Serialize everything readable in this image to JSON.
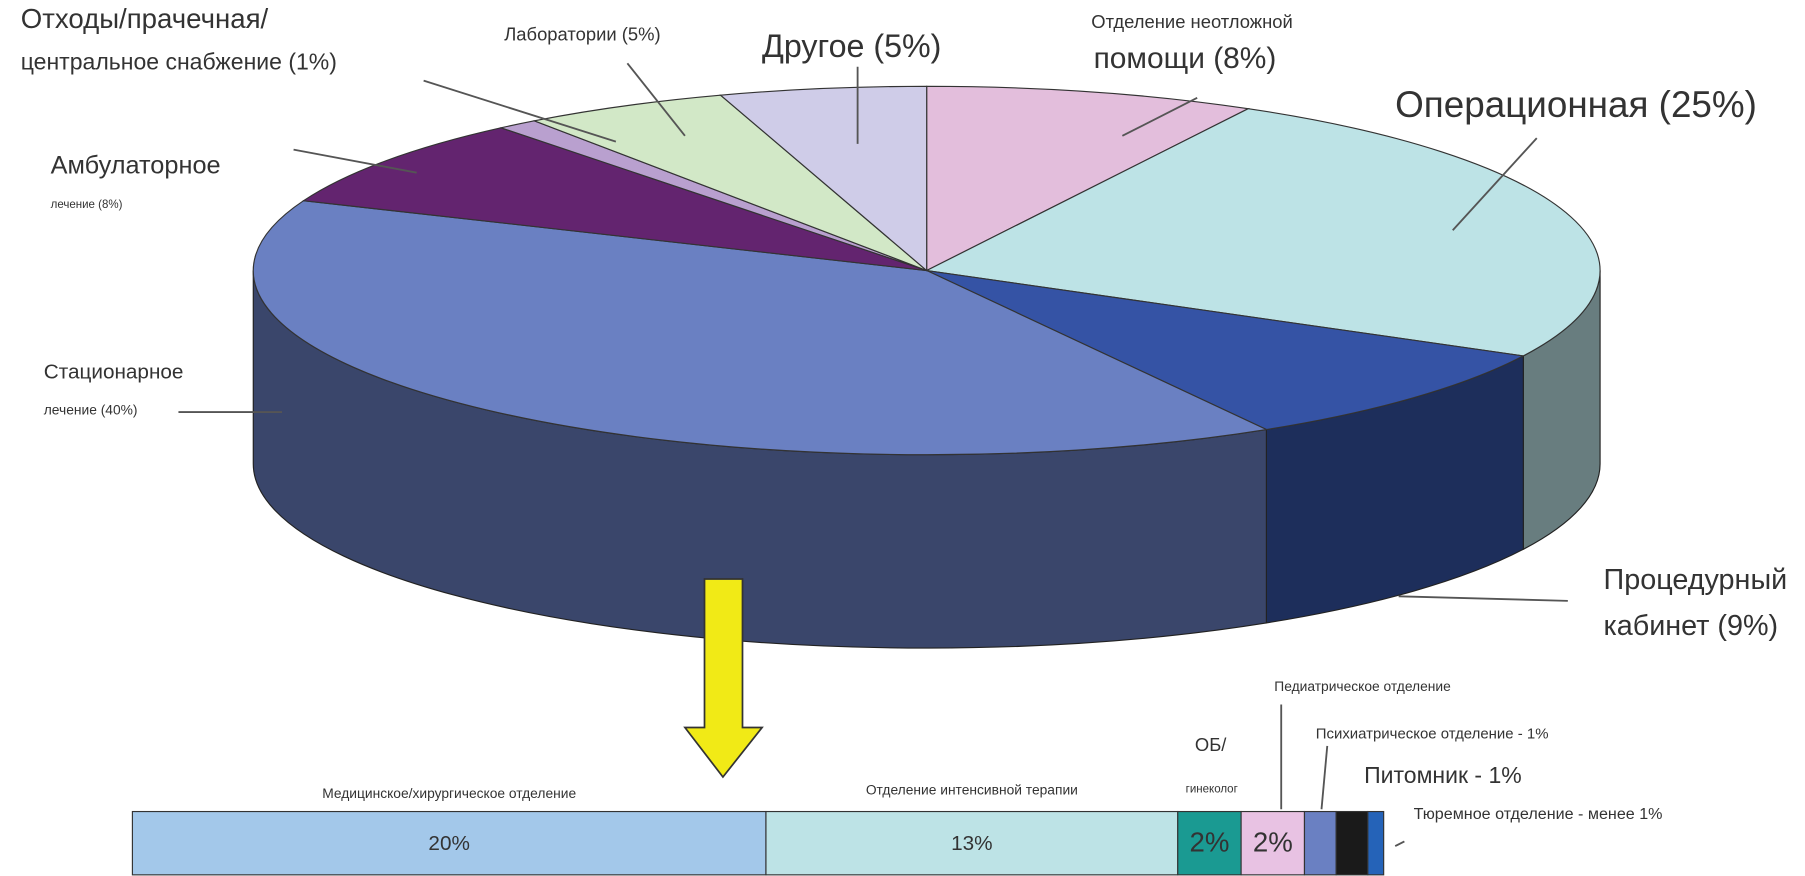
{
  "chart_data": [
    {
      "type": "pie",
      "categories": [
        [
          "Отделение неотложной",
          "помощи (8%)"
        ],
        [
          "Операционная (25%)"
        ],
        [
          "Процедурный",
          "кабинет (9%)"
        ],
        [
          "Стационарное",
          "лечение (40%)"
        ],
        [
          "Амбулаторное",
          "лечение (8%)"
        ],
        [
          "Отходы/прачечная/",
          "центральное снабжение (1%)"
        ],
        [
          "Лаборатории (5%)"
        ],
        [
          "Другое (5%)"
        ]
      ],
      "values": [
        8,
        25,
        9,
        40,
        8,
        1,
        5,
        5
      ],
      "colors": [
        "#e3bedc",
        "#bde3e6",
        "#3553a5",
        "#6a80c2",
        "#63246f",
        "#b9a0cf",
        "#d2e8c7",
        "#cfcce8"
      ]
    },
    {
      "type": "stacked-bar",
      "categories": [
        [
          "Медицинское/хирургическое отделение"
        ],
        [
          "Отделение интенсивной терапии"
        ],
        [
          "ОБ/",
          "гинеколог"
        ],
        [
          "Педиатрическое отделение"
        ],
        [
          "Психиатрическое отделение - 1%"
        ],
        [
          "Питомник - 1%"
        ],
        [
          "Тюремное отделение - менее 1%"
        ]
      ],
      "values": [
        20,
        13,
        2,
        2,
        1,
        1,
        0.5
      ],
      "value_labels": [
        "20%",
        "13%",
        "2%",
        "2%",
        null,
        null,
        null
      ],
      "colors": [
        "#a3c8ea",
        "#bde3e6",
        "#1a9a92",
        "#e8c2e3",
        "#6a80c2",
        "#1a1a1a",
        "#2563b8"
      ]
    }
  ]
}
